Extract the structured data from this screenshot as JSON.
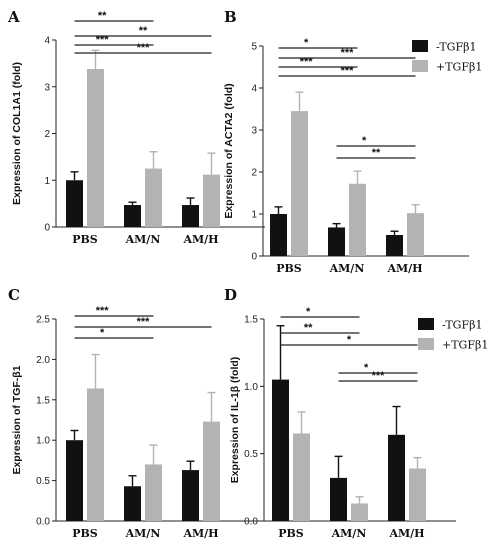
{
  "colors": {
    "neg": "#111111",
    "pos": "#b3b3b3",
    "axis": "#222222"
  },
  "legend_entries": [
    {
      "label": "-TGFβ1",
      "color": "#111111"
    },
    {
      "label": "+TGFβ1",
      "color": "#b3b3b3"
    }
  ],
  "chart_data": [
    {
      "type": "bar",
      "panel": "A",
      "categories": [
        "PBS",
        "AM/N",
        "AM/H"
      ],
      "ylabel": "Expression of COL1A1 (fold)",
      "ylim": [
        0,
        4
      ],
      "yticks": [
        0,
        1,
        2,
        3,
        4
      ],
      "ytick_labels": [
        "0",
        "1",
        "2",
        "3",
        "4"
      ],
      "series": [
        {
          "name": "-TGFβ1",
          "values": [
            1.0,
            0.47,
            0.47
          ],
          "errors": [
            0.18,
            0.06,
            0.15
          ]
        },
        {
          "name": "+TGFβ1",
          "values": [
            3.38,
            1.25,
            1.12
          ],
          "errors": [
            0.4,
            0.36,
            0.46
          ]
        }
      ],
      "significance": [
        {
          "label": "**",
          "from": "PBS",
          "to": "AM/N"
        },
        {
          "label": "**",
          "from": "PBS",
          "to": "AM/H"
        },
        {
          "label": "***",
          "from": "PBS",
          "to": "AM/N"
        },
        {
          "label": "***",
          "from": "PBS",
          "to": "AM/H"
        }
      ]
    },
    {
      "type": "bar",
      "panel": "B",
      "categories": [
        "PBS",
        "AM/N",
        "AM/H"
      ],
      "ylabel": "Expression of ACTA2 (fold)",
      "ylim": [
        0,
        5
      ],
      "yticks": [
        0,
        1,
        2,
        3,
        4,
        5
      ],
      "ytick_labels": [
        "0",
        "1",
        "2",
        "3",
        "4",
        "5"
      ],
      "series": [
        {
          "name": "-TGFβ1",
          "values": [
            1.0,
            0.68,
            0.5
          ],
          "errors": [
            0.17,
            0.09,
            0.09
          ]
        },
        {
          "name": "+TGFβ1",
          "values": [
            3.45,
            1.72,
            1.02
          ],
          "errors": [
            0.45,
            0.3,
            0.2
          ]
        }
      ],
      "significance": [
        {
          "label": "*",
          "from": "PBS",
          "to": "AM/N"
        },
        {
          "label": "***",
          "from": "PBS",
          "to": "AM/H"
        },
        {
          "label": "***",
          "from": "PBS",
          "to": "AM/N"
        },
        {
          "label": "***",
          "from": "PBS",
          "to": "AM/H"
        },
        {
          "label": "*",
          "from": "AM/N",
          "to": "AM/H"
        },
        {
          "label": "**",
          "from": "AM/N",
          "to": "AM/H"
        }
      ]
    },
    {
      "type": "bar",
      "panel": "C",
      "categories": [
        "PBS",
        "AM/N",
        "AM/H"
      ],
      "ylabel": "Expression of TGF-β1",
      "ylim": [
        0,
        2.5
      ],
      "yticks": [
        0,
        0.5,
        1.0,
        1.5,
        2.0,
        2.5
      ],
      "ytick_labels": [
        "0.0",
        "0.5",
        "1.0",
        "1.5",
        "2.0",
        "2.5"
      ],
      "series": [
        {
          "name": "-TGFβ1",
          "values": [
            1.0,
            0.43,
            0.63
          ],
          "errors": [
            0.12,
            0.13,
            0.11
          ]
        },
        {
          "name": "+TGFβ1",
          "values": [
            1.64,
            0.7,
            1.23
          ],
          "errors": [
            0.42,
            0.24,
            0.36
          ]
        }
      ],
      "significance": [
        {
          "label": "***",
          "from": "PBS",
          "to": "AM/N"
        },
        {
          "label": "***",
          "from": "PBS",
          "to": "AM/H"
        },
        {
          "label": "*",
          "from": "PBS",
          "to": "AM/N"
        }
      ]
    },
    {
      "type": "bar",
      "panel": "D",
      "categories": [
        "PBS",
        "AM/N",
        "AM/H"
      ],
      "ylabel": "Expression of IL-1β (fold)",
      "ylim": [
        0,
        1.5
      ],
      "yticks": [
        0,
        0.5,
        1.0,
        1.5
      ],
      "ytick_labels": [
        "0.0",
        "0.5",
        "1.0",
        "1.5"
      ],
      "series": [
        {
          "name": "-TGFβ1",
          "values": [
            1.05,
            0.32,
            0.64
          ],
          "errors": [
            0.4,
            0.16,
            0.21
          ]
        },
        {
          "name": "+TGFβ1",
          "values": [
            0.65,
            0.13,
            0.39
          ],
          "errors": [
            0.16,
            0.05,
            0.08
          ]
        }
      ],
      "significance": [
        {
          "label": "*",
          "from": "PBS",
          "to": "AM/N"
        },
        {
          "label": "**",
          "from": "PBS",
          "to": "AM/N"
        },
        {
          "label": "*",
          "from": "PBS",
          "to": "AM/H"
        },
        {
          "label": "*",
          "from": "AM/N",
          "to": "AM/H"
        },
        {
          "label": "***",
          "from": "AM/N",
          "to": "AM/H"
        }
      ]
    }
  ]
}
